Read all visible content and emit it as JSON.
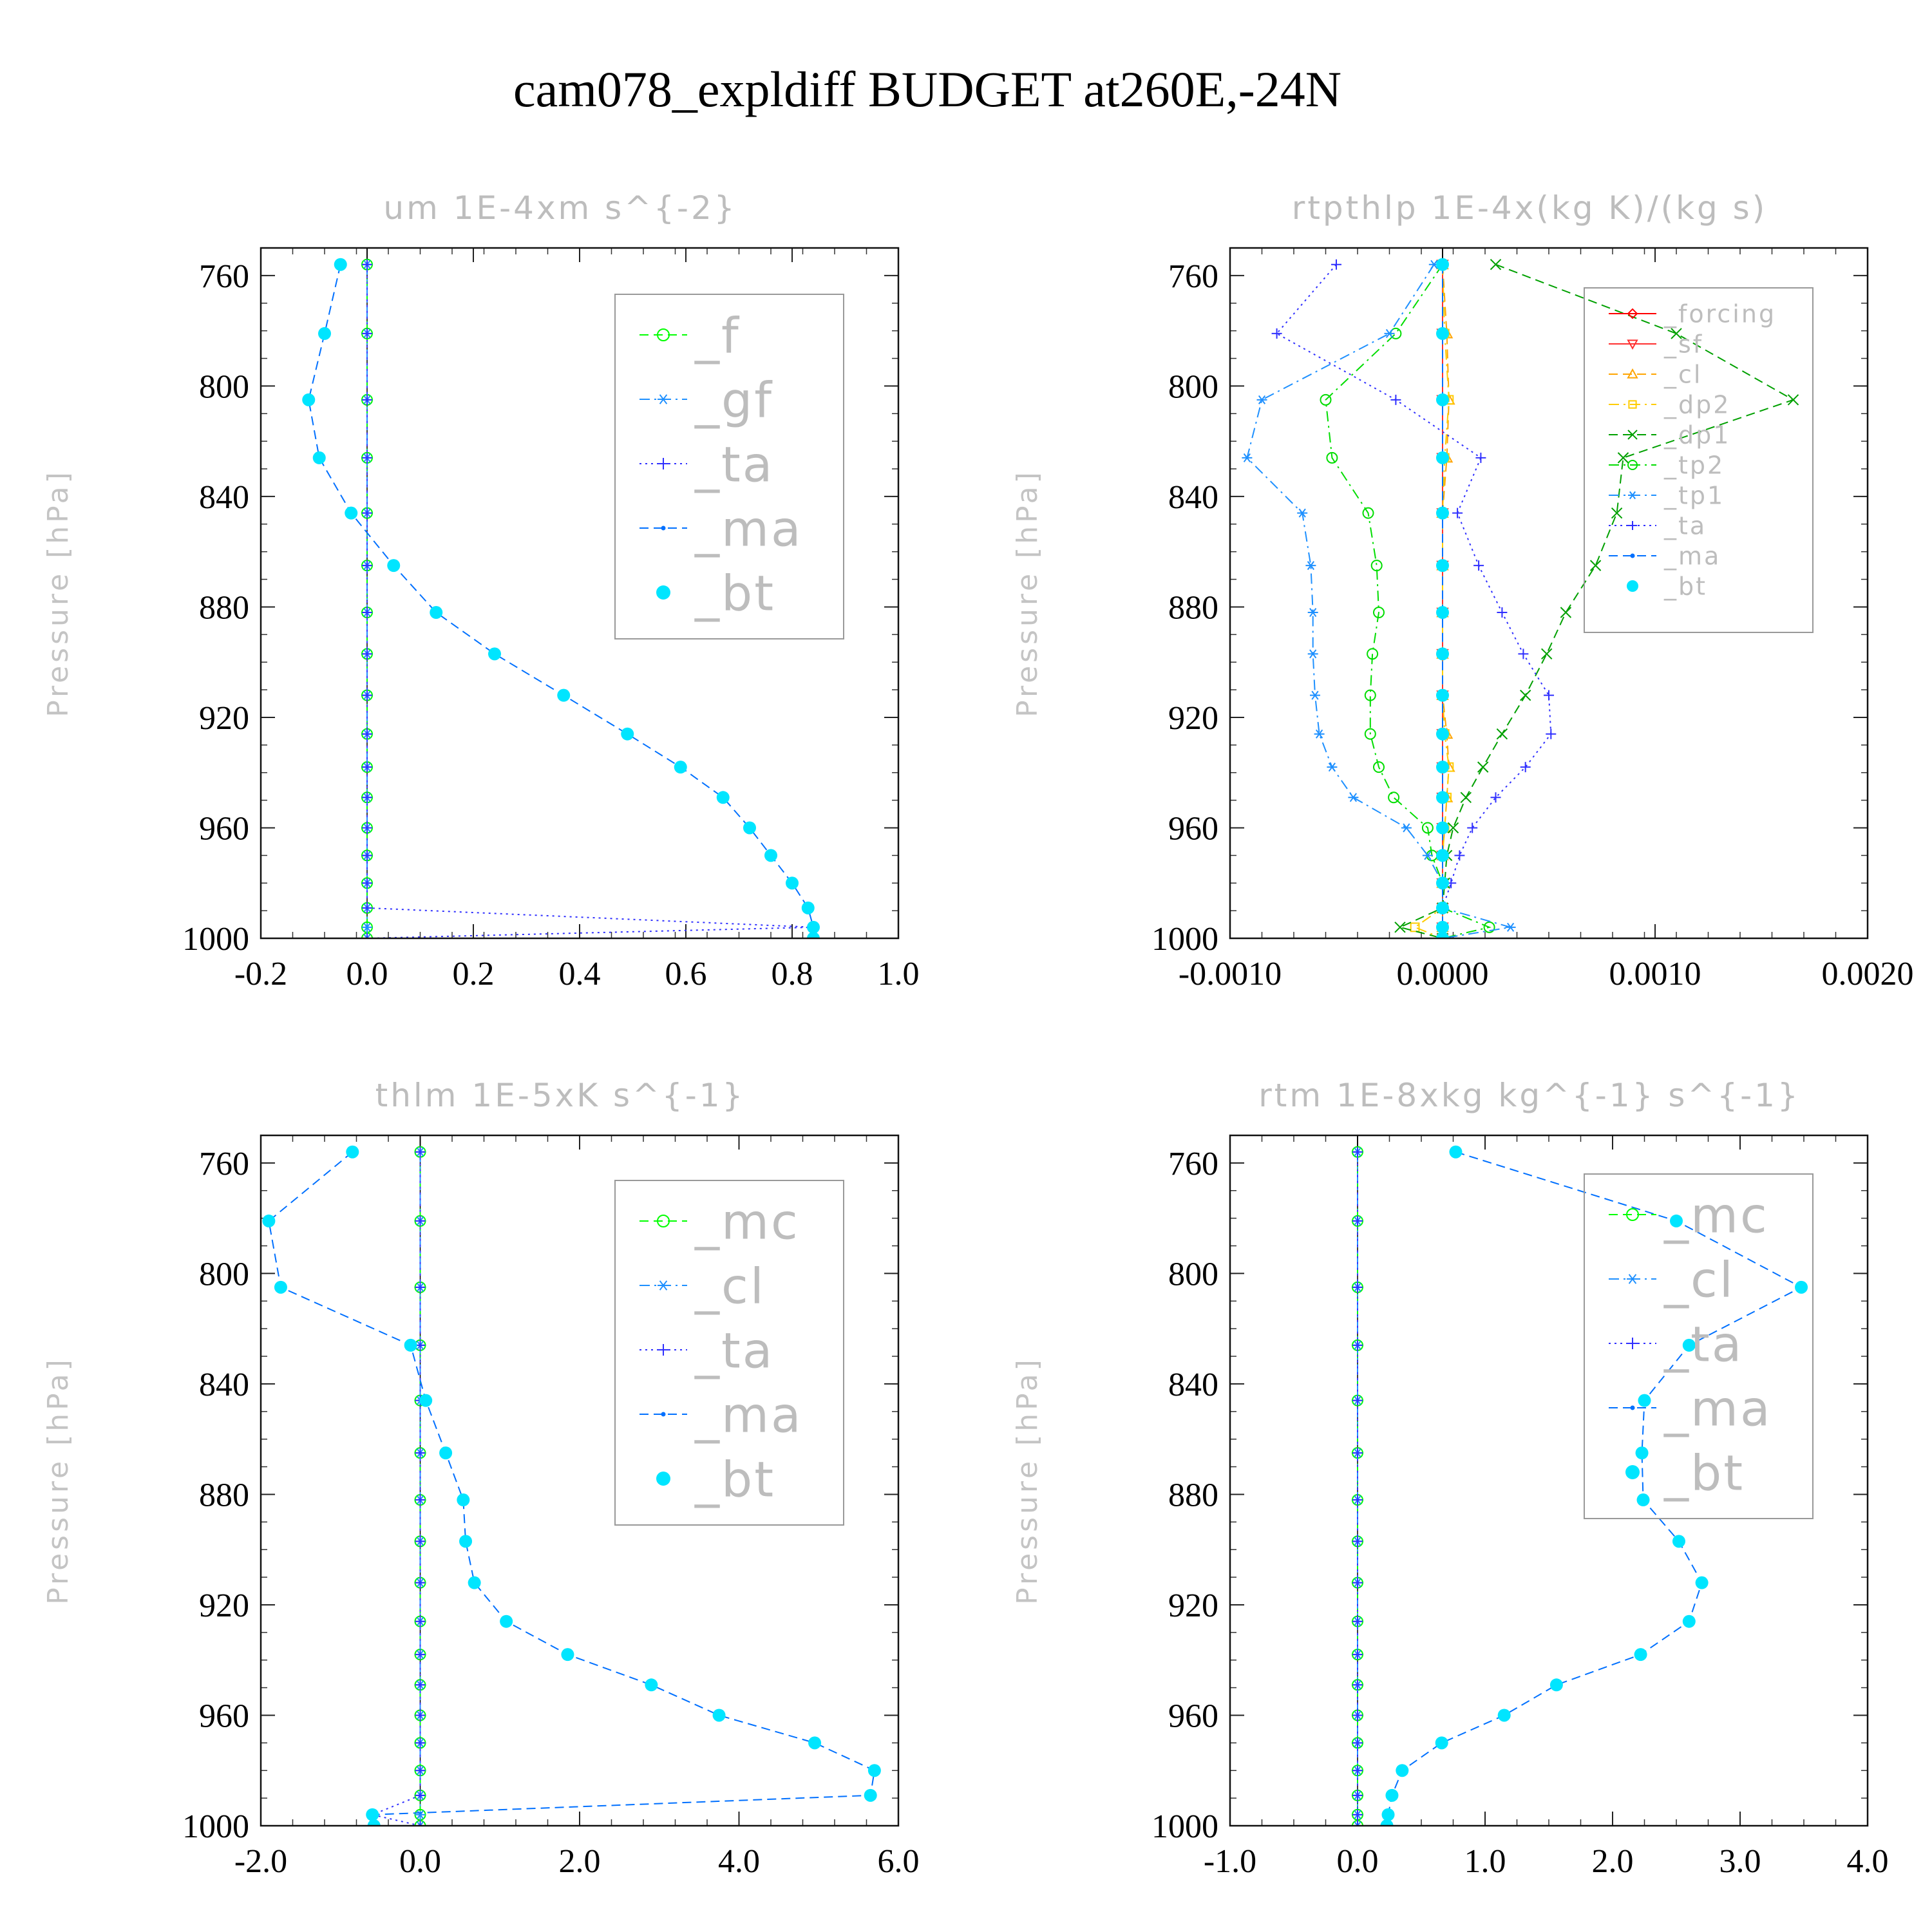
{
  "figure": {
    "title": "cam078_expldiff  BUDGET at260E,-24N"
  },
  "chart_data": [
    {
      "type": "line",
      "title": "um   1E-4xm s^{-2}",
      "ylabel": "Pressure [hPa]",
      "xlabel": "",
      "xlim": [
        -0.2,
        1.0
      ],
      "ylim": [
        1000,
        750
      ],
      "xticks": [
        -0.2,
        0.0,
        0.2,
        0.4,
        0.6,
        0.8,
        1.0
      ],
      "xtick_labels": [
        "-0.2",
        "0.0",
        "0.2",
        "0.4",
        "0.6",
        "0.8",
        "1.0"
      ],
      "yticks": [
        760,
        800,
        840,
        880,
        920,
        960,
        1000
      ],
      "ytick_labels": [
        "760",
        "800",
        "840",
        "880",
        "920",
        "960",
        "1000"
      ],
      "legend": {
        "position": "top-right",
        "size": "large"
      },
      "levels": [
        756,
        781,
        805,
        826,
        846,
        865,
        882,
        897,
        912,
        926,
        938,
        949,
        960,
        970,
        980,
        989,
        996,
        1000
      ],
      "series": [
        {
          "name": "_f",
          "color": "#00ff00",
          "style": "dash",
          "marker": "circle",
          "values": [
            0,
            0,
            0,
            0,
            0,
            0,
            0,
            0,
            0,
            0,
            0,
            0,
            0,
            0,
            0,
            0,
            0,
            0
          ]
        },
        {
          "name": "_gf",
          "color": "#1e90ff",
          "style": "dashdot",
          "marker": "asterisk",
          "values": [
            0,
            0,
            0,
            0,
            0,
            0,
            0,
            0,
            0,
            0,
            0,
            0,
            0,
            0,
            0,
            0,
            0,
            0
          ]
        },
        {
          "name": "_ta",
          "color": "#3030ff",
          "style": "dot",
          "marker": "plus",
          "values": [
            0,
            0,
            0,
            0,
            0,
            0,
            0,
            0,
            0,
            0,
            0,
            0,
            0,
            0,
            0,
            0,
            0.84,
            0
          ]
        },
        {
          "name": "_ma",
          "color": "#0070ff",
          "style": "dash",
          "marker": "dot",
          "values": [
            -0.05,
            -0.08,
            -0.11,
            -0.09,
            -0.03,
            0.05,
            0.13,
            0.24,
            0.37,
            0.49,
            0.59,
            0.67,
            0.72,
            0.76,
            0.8,
            0.83,
            0.84,
            0.84
          ]
        },
        {
          "name": "_bt",
          "color": "#00e5ff",
          "style": "none",
          "marker": "filled",
          "values": [
            -0.05,
            -0.08,
            -0.11,
            -0.09,
            -0.03,
            0.05,
            0.13,
            0.24,
            0.37,
            0.49,
            0.59,
            0.67,
            0.72,
            0.76,
            0.8,
            0.83,
            0.84,
            0.84
          ]
        }
      ]
    },
    {
      "type": "line",
      "title": "rtpthlp   1E-4x(kg K)/(kg s)",
      "ylabel": "Pressure [hPa]",
      "xlabel": "",
      "xlim": [
        -0.001,
        0.002
      ],
      "ylim": [
        1000,
        750
      ],
      "xticks": [
        -0.001,
        0.0,
        0.001,
        0.002
      ],
      "xtick_labels": [
        "-0.0010",
        "0.0000",
        "0.0010",
        "0.0020"
      ],
      "yticks": [
        760,
        800,
        840,
        880,
        920,
        960,
        1000
      ],
      "ytick_labels": [
        "760",
        "800",
        "840",
        "880",
        "920",
        "960",
        "1000"
      ],
      "legend": {
        "position": "top-right",
        "size": "small"
      },
      "levels": [
        756,
        781,
        805,
        826,
        846,
        865,
        882,
        897,
        912,
        926,
        938,
        949,
        960,
        970,
        980,
        989,
        996,
        1000
      ],
      "series": [
        {
          "name": "_forcing",
          "color": "#ff0000",
          "style": "solid",
          "marker": "diamond",
          "values": [
            0,
            0,
            0,
            0,
            0,
            0,
            0,
            0,
            0,
            0,
            0,
            0,
            0,
            0,
            0,
            0,
            0,
            0
          ]
        },
        {
          "name": "_sf",
          "color": "#ff3030",
          "style": "solid",
          "marker": "triangle-down",
          "values": [
            0,
            0,
            0,
            0,
            0,
            0,
            0,
            0,
            0,
            0,
            0,
            0,
            0,
            0,
            0,
            0,
            0,
            0
          ]
        },
        {
          "name": "_cl",
          "color": "#ffa500",
          "style": "dash",
          "marker": "triangle",
          "values": [
            0,
            2e-05,
            3e-05,
            2e-05,
            0,
            0,
            0,
            0,
            0,
            2e-05,
            3e-05,
            2e-05,
            1e-05,
            0,
            0,
            0,
            0,
            0
          ]
        },
        {
          "name": "_dp2",
          "color": "#ffcc00",
          "style": "dashdot",
          "marker": "square",
          "values": [
            0,
            1e-05,
            3e-05,
            1e-05,
            0,
            0,
            0,
            0,
            0,
            1e-05,
            3e-05,
            2e-05,
            1e-05,
            0,
            0,
            0,
            -0.00013,
            0
          ]
        },
        {
          "name": "_dp1",
          "color": "#00a000",
          "style": "dash",
          "marker": "x",
          "values": [
            0.00025,
            0.0011,
            0.00165,
            0.00085,
            0.00082,
            0.00072,
            0.00058,
            0.00049,
            0.00039,
            0.00028,
            0.00019,
            0.00011,
            5e-05,
            2e-05,
            1e-05,
            0,
            -0.0002,
            0
          ]
        },
        {
          "name": "_tp2",
          "color": "#00dd00",
          "style": "dashdot",
          "marker": "circle",
          "values": [
            0,
            -0.00022,
            -0.00055,
            -0.00052,
            -0.00035,
            -0.00031,
            -0.0003,
            -0.00033,
            -0.00034,
            -0.00034,
            -0.0003,
            -0.00023,
            -7e-05,
            -5e-05,
            0,
            0,
            0.00022,
            0
          ]
        },
        {
          "name": "_tp1",
          "color": "#1e90ff",
          "style": "dashdot",
          "marker": "asterisk",
          "values": [
            -4e-05,
            -0.00025,
            -0.00085,
            -0.00092,
            -0.00066,
            -0.00062,
            -0.00061,
            -0.00061,
            -0.0006,
            -0.00058,
            -0.00052,
            -0.00042,
            -0.00017,
            -7e-05,
            0,
            0,
            0.00032,
            0
          ]
        },
        {
          "name": "_ta",
          "color": "#3030ff",
          "style": "dot",
          "marker": "plus",
          "values": [
            -0.0005,
            -0.00078,
            -0.00022,
            0.00018,
            7e-05,
            0.00017,
            0.00028,
            0.00038,
            0.0005,
            0.00051,
            0.00039,
            0.00025,
            0.00014,
            8e-05,
            4e-05,
            0,
            0,
            0
          ]
        },
        {
          "name": "_ma",
          "color": "#0070ff",
          "style": "dash",
          "marker": "dot",
          "values": [
            0,
            0,
            0,
            0,
            0,
            0,
            0,
            0,
            0,
            0,
            0,
            0,
            0,
            0,
            0,
            0,
            0,
            0
          ]
        },
        {
          "name": "_bt",
          "color": "#00e5ff",
          "style": "none",
          "marker": "filled",
          "values": [
            0,
            0,
            0,
            0,
            0,
            0,
            0,
            0,
            0,
            0,
            0,
            0,
            0,
            0,
            0,
            0,
            0,
            0
          ]
        }
      ]
    },
    {
      "type": "line",
      "title": "thlm   1E-5xK s^{-1}",
      "ylabel": "Pressure [hPa]",
      "xlabel": "",
      "xlim": [
        -2.0,
        6.0
      ],
      "ylim": [
        1000,
        750
      ],
      "xticks": [
        -2.0,
        0.0,
        2.0,
        4.0,
        6.0
      ],
      "xtick_labels": [
        "-2.0",
        "0.0",
        "2.0",
        "4.0",
        "6.0"
      ],
      "yticks": [
        760,
        800,
        840,
        880,
        920,
        960,
        1000
      ],
      "ytick_labels": [
        "760",
        "800",
        "840",
        "880",
        "920",
        "960",
        "1000"
      ],
      "legend": {
        "position": "top-right",
        "size": "large"
      },
      "levels": [
        756,
        781,
        805,
        826,
        846,
        865,
        882,
        897,
        912,
        926,
        938,
        949,
        960,
        970,
        980,
        989,
        996,
        1000
      ],
      "series": [
        {
          "name": "_mc",
          "color": "#00ff00",
          "style": "dash",
          "marker": "circle",
          "values": [
            0,
            0,
            0,
            0,
            0,
            0,
            0,
            0,
            0,
            0,
            0,
            0,
            0,
            0,
            0,
            0,
            0,
            0
          ]
        },
        {
          "name": "_cl",
          "color": "#1e90ff",
          "style": "dashdot",
          "marker": "asterisk",
          "values": [
            0,
            0,
            0,
            0,
            0,
            0,
            0,
            0,
            0,
            0,
            0,
            0,
            0,
            0,
            0,
            0,
            0,
            0
          ]
        },
        {
          "name": "_ta",
          "color": "#3030ff",
          "style": "dot",
          "marker": "plus",
          "values": [
            0,
            0,
            0,
            0,
            0,
            0,
            0,
            0,
            0,
            0,
            0,
            0,
            0,
            0,
            0,
            0,
            -0.6,
            0
          ]
        },
        {
          "name": "_ma",
          "color": "#0070ff",
          "style": "dash",
          "marker": "dot",
          "values": [
            -0.85,
            -1.9,
            -1.75,
            -0.12,
            0.07,
            0.32,
            0.54,
            0.57,
            0.68,
            1.08,
            1.85,
            2.9,
            3.75,
            4.95,
            5.7,
            5.65,
            -0.6,
            -0.58
          ]
        },
        {
          "name": "_bt",
          "color": "#00e5ff",
          "style": "none",
          "marker": "filled",
          "values": [
            -0.85,
            -1.9,
            -1.75,
            -0.12,
            0.07,
            0.32,
            0.54,
            0.57,
            0.68,
            1.08,
            1.85,
            2.9,
            3.75,
            4.95,
            5.7,
            5.65,
            -0.6,
            -0.58
          ]
        }
      ]
    },
    {
      "type": "line",
      "title": "rtm   1E-8xkg kg^{-1} s^{-1}",
      "ylabel": "Pressure [hPa]",
      "xlabel": "",
      "xlim": [
        -1.0,
        4.0
      ],
      "ylim": [
        1000,
        750
      ],
      "xticks": [
        -1.0,
        0.0,
        1.0,
        2.0,
        3.0,
        4.0
      ],
      "xtick_labels": [
        "-1.0",
        "0.0",
        "1.0",
        "2.0",
        "3.0",
        "4.0"
      ],
      "yticks": [
        760,
        800,
        840,
        880,
        920,
        960,
        1000
      ],
      "ytick_labels": [
        "760",
        "800",
        "840",
        "880",
        "920",
        "960",
        "1000"
      ],
      "legend": {
        "position": "top-right",
        "size": "large"
      },
      "levels": [
        756,
        781,
        805,
        826,
        846,
        865,
        882,
        897,
        912,
        926,
        938,
        949,
        960,
        970,
        980,
        989,
        996,
        1000
      ],
      "series": [
        {
          "name": "_mc",
          "color": "#00ff00",
          "style": "dash",
          "marker": "circle",
          "values": [
            0,
            0,
            0,
            0,
            0,
            0,
            0,
            0,
            0,
            0,
            0,
            0,
            0,
            0,
            0,
            0,
            0,
            0
          ]
        },
        {
          "name": "_cl",
          "color": "#1e90ff",
          "style": "dashdot",
          "marker": "asterisk",
          "values": [
            0,
            0,
            0,
            0,
            0,
            0,
            0,
            0,
            0,
            0,
            0,
            0,
            0,
            0,
            0,
            0,
            0,
            0
          ]
        },
        {
          "name": "_ta",
          "color": "#3030ff",
          "style": "dot",
          "marker": "plus",
          "values": [
            0,
            0,
            0,
            0,
            0,
            0,
            0,
            0,
            0,
            0,
            0,
            0,
            0,
            0,
            0,
            0,
            0,
            0
          ]
        },
        {
          "name": "_ma",
          "color": "#0070ff",
          "style": "dash",
          "marker": "dot",
          "values": [
            0.77,
            2.5,
            3.48,
            2.6,
            2.25,
            2.23,
            2.24,
            2.52,
            2.7,
            2.6,
            2.22,
            1.56,
            1.15,
            0.66,
            0.35,
            0.27,
            0.24,
            0.23
          ]
        },
        {
          "name": "_bt",
          "color": "#00e5ff",
          "style": "none",
          "marker": "filled",
          "values": [
            0.77,
            2.5,
            3.48,
            2.6,
            2.25,
            2.23,
            2.24,
            2.52,
            2.7,
            2.6,
            2.22,
            1.56,
            1.15,
            0.66,
            0.35,
            0.27,
            0.24,
            0.23
          ]
        }
      ]
    }
  ]
}
